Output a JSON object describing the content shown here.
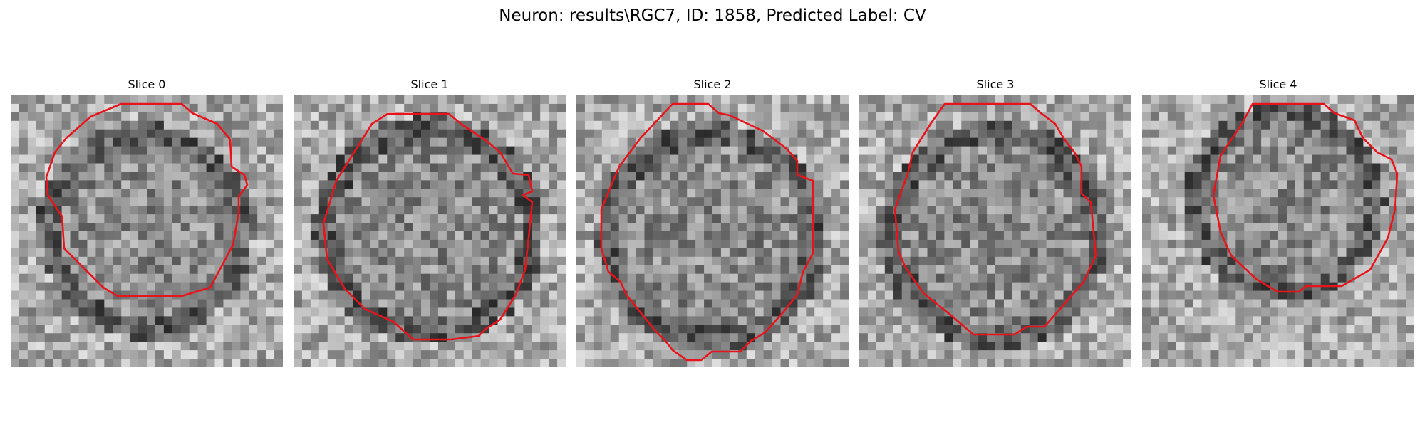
{
  "figure": {
    "title": "Neuron: results\\RGC7, ID: 1858, Predicted Label: CV",
    "contour_color": "#e8141c"
  },
  "panels": [
    {
      "title": "Slice 0"
    },
    {
      "title": "Slice 1"
    },
    {
      "title": "Slice 2"
    },
    {
      "title": "Slice 3"
    },
    {
      "title": "Slice 4"
    }
  ]
}
